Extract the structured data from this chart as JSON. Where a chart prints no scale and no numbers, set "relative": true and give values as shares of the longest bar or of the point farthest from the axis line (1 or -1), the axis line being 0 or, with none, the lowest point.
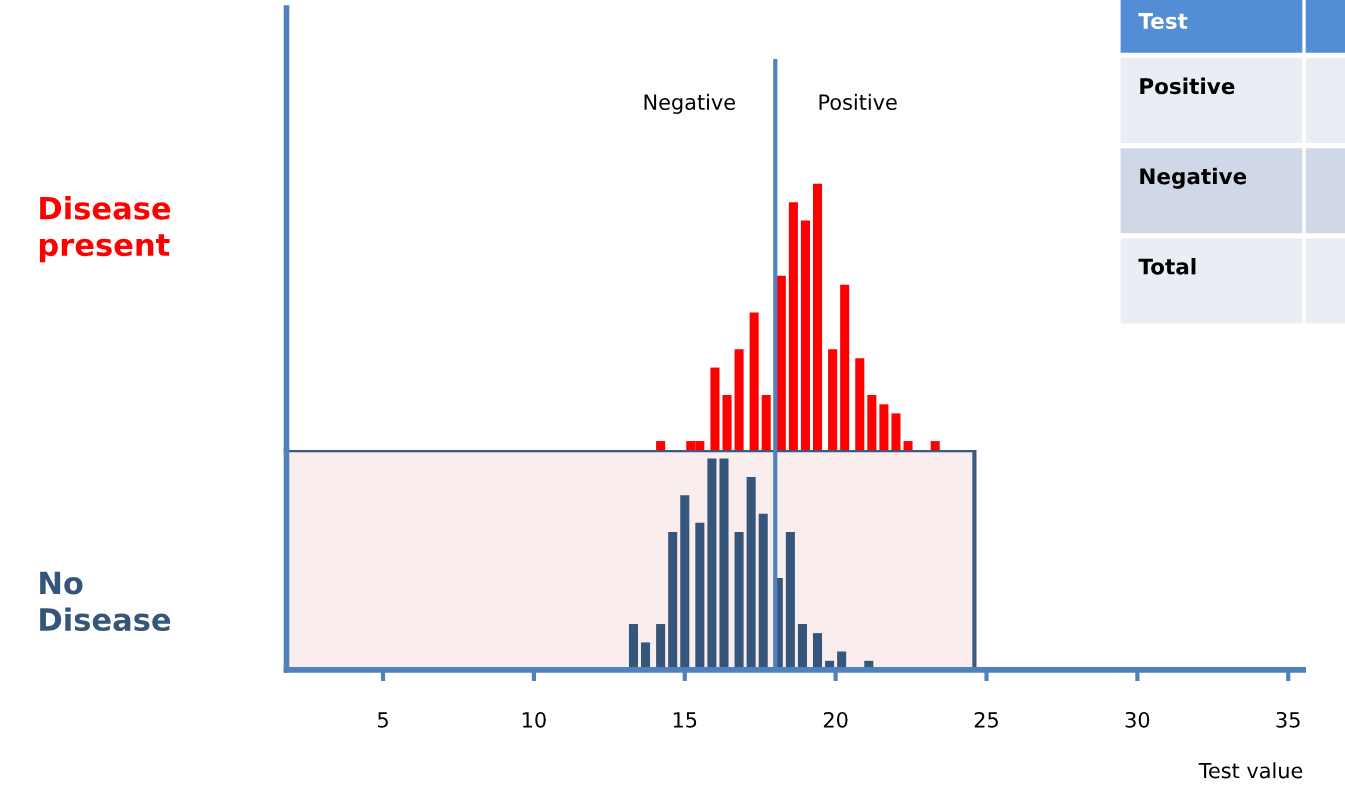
{
  "chart_data": [
    {
      "type": "bar",
      "relative": true,
      "ylabel": "Disease present",
      "xlim": [
        1.8,
        35.5
      ],
      "tick_labels": false,
      "ref_lines": [
        {
          "axis": "x",
          "value": 18,
          "color": "#4f81bd"
        }
      ],
      "annotations": [
        "Negative",
        "Positive"
      ],
      "series": [
        {
          "color": "#ff0000",
          "x": [
            14.2,
            15.2,
            15.5,
            16.0,
            16.4,
            16.8,
            17.3,
            17.7,
            18.2,
            18.6,
            19.0,
            19.4,
            19.9,
            20.3,
            20.8,
            21.2,
            21.6,
            22.0,
            22.4,
            23.3
          ],
          "values": [
            0.034,
            0.034,
            0.034,
            0.31,
            0.207,
            0.379,
            0.517,
            0.207,
            0.655,
            0.931,
            0.862,
            1,
            0.379,
            0.621,
            0.345,
            0.207,
            0.172,
            0.138,
            0.034,
            0.034
          ]
        }
      ]
    },
    {
      "type": "bar",
      "relative": true,
      "ylabel": "No Disease",
      "xlabel": "Test value",
      "xlim": [
        1.8,
        35.5
      ],
      "xticks": [
        5,
        10,
        15,
        20,
        25,
        30,
        35
      ],
      "tick_labels": "x",
      "ref_lines": [
        {
          "axis": "x",
          "value": 18,
          "color": "#4f81bd"
        }
      ],
      "bands": [
        {
          "axis": "x",
          "from": 1.8,
          "to": 24.6,
          "color": "#f9eded"
        }
      ],
      "series": [
        {
          "color": "#35557a",
          "x": [
            13.3,
            13.7,
            14.2,
            14.6,
            15.0,
            15.5,
            15.9,
            16.3,
            16.8,
            17.2,
            17.6,
            18.1,
            18.5,
            18.9,
            19.4,
            19.8,
            20.2,
            21.1
          ],
          "values": [
            0.217,
            0.13,
            0.217,
            0.652,
            0.826,
            0.696,
            1,
            1,
            0.652,
            0.913,
            0.739,
            0.435,
            0.652,
            0.217,
            0.174,
            0.043,
            0.087,
            0.043
          ]
        }
      ]
    },
    {
      "type": "other",
      "annotations": [
        "Test",
        "Positive",
        "Negative",
        "Total"
      ]
    }
  ]
}
